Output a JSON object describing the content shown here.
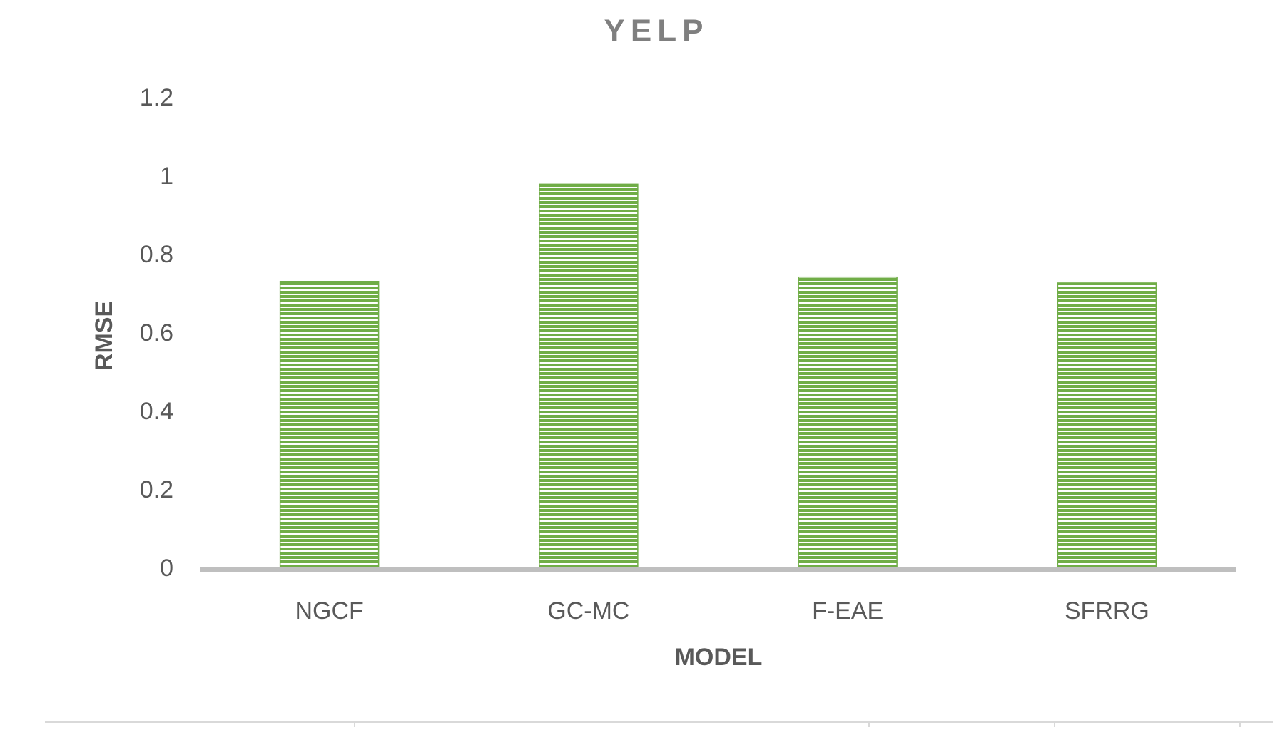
{
  "chart_data": {
    "type": "bar",
    "title": "YELP",
    "x_label": "MODEL",
    "y_label": "RMSE",
    "categories": [
      "NGCF",
      "GC-MC",
      "F-EAE",
      "SFRRG"
    ],
    "values": [
      0.735,
      0.983,
      0.746,
      0.731
    ],
    "color": "#70ad47",
    "ylim": [
      0,
      1.2
    ],
    "yticks": [
      0,
      0.2,
      0.4,
      0.6,
      0.8,
      1,
      1.2
    ],
    "grid": false
  }
}
